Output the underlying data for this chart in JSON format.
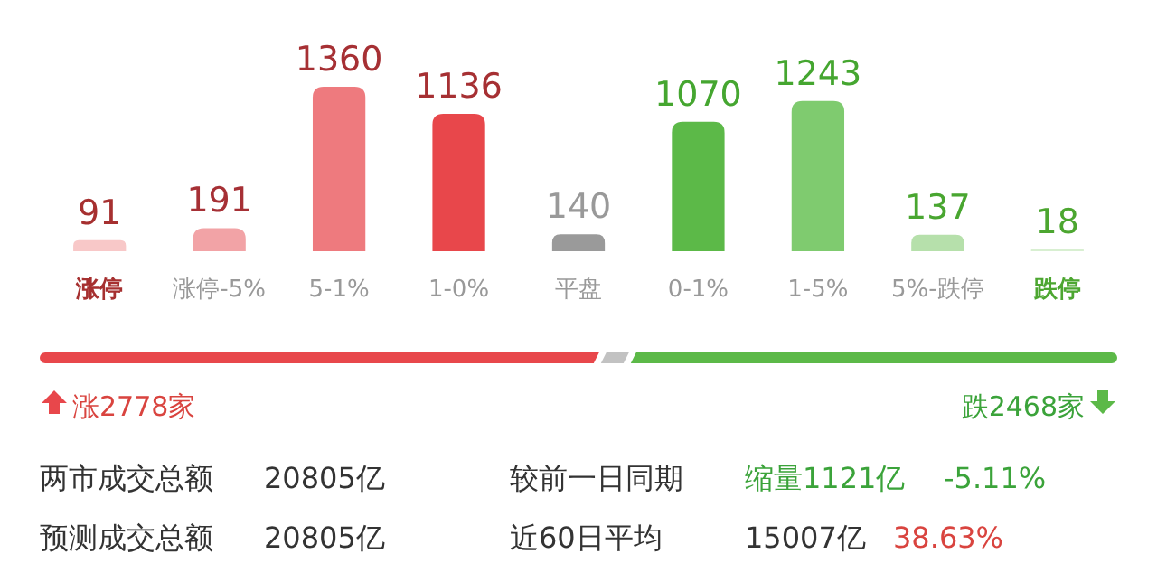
{
  "chart_data": {
    "type": "bar",
    "categories": [
      "涨停",
      "涨停-5%",
      "5-1%",
      "1-0%",
      "平盘",
      "0-1%",
      "1-5%",
      "5%-跌停",
      "跌停"
    ],
    "values": [
      91,
      191,
      1360,
      1136,
      140,
      1070,
      1243,
      137,
      18
    ],
    "colors": [
      "#f8c8c8",
      "#f2a3a6",
      "#ee7a7e",
      "#e8474b",
      "#9a9a9a",
      "#5cb948",
      "#7fcb6f",
      "#b6e0ab",
      "#d8efd1"
    ],
    "data_labels": true,
    "annotations": [
      "涨2778家",
      "跌2468家",
      "两市成交总额",
      "20805亿",
      "较前一日同期",
      "缩量1121亿",
      "-5.11%",
      "预测成交总额",
      "20805亿",
      "近60日平均",
      "15007亿",
      "38.63%"
    ]
  }
}
